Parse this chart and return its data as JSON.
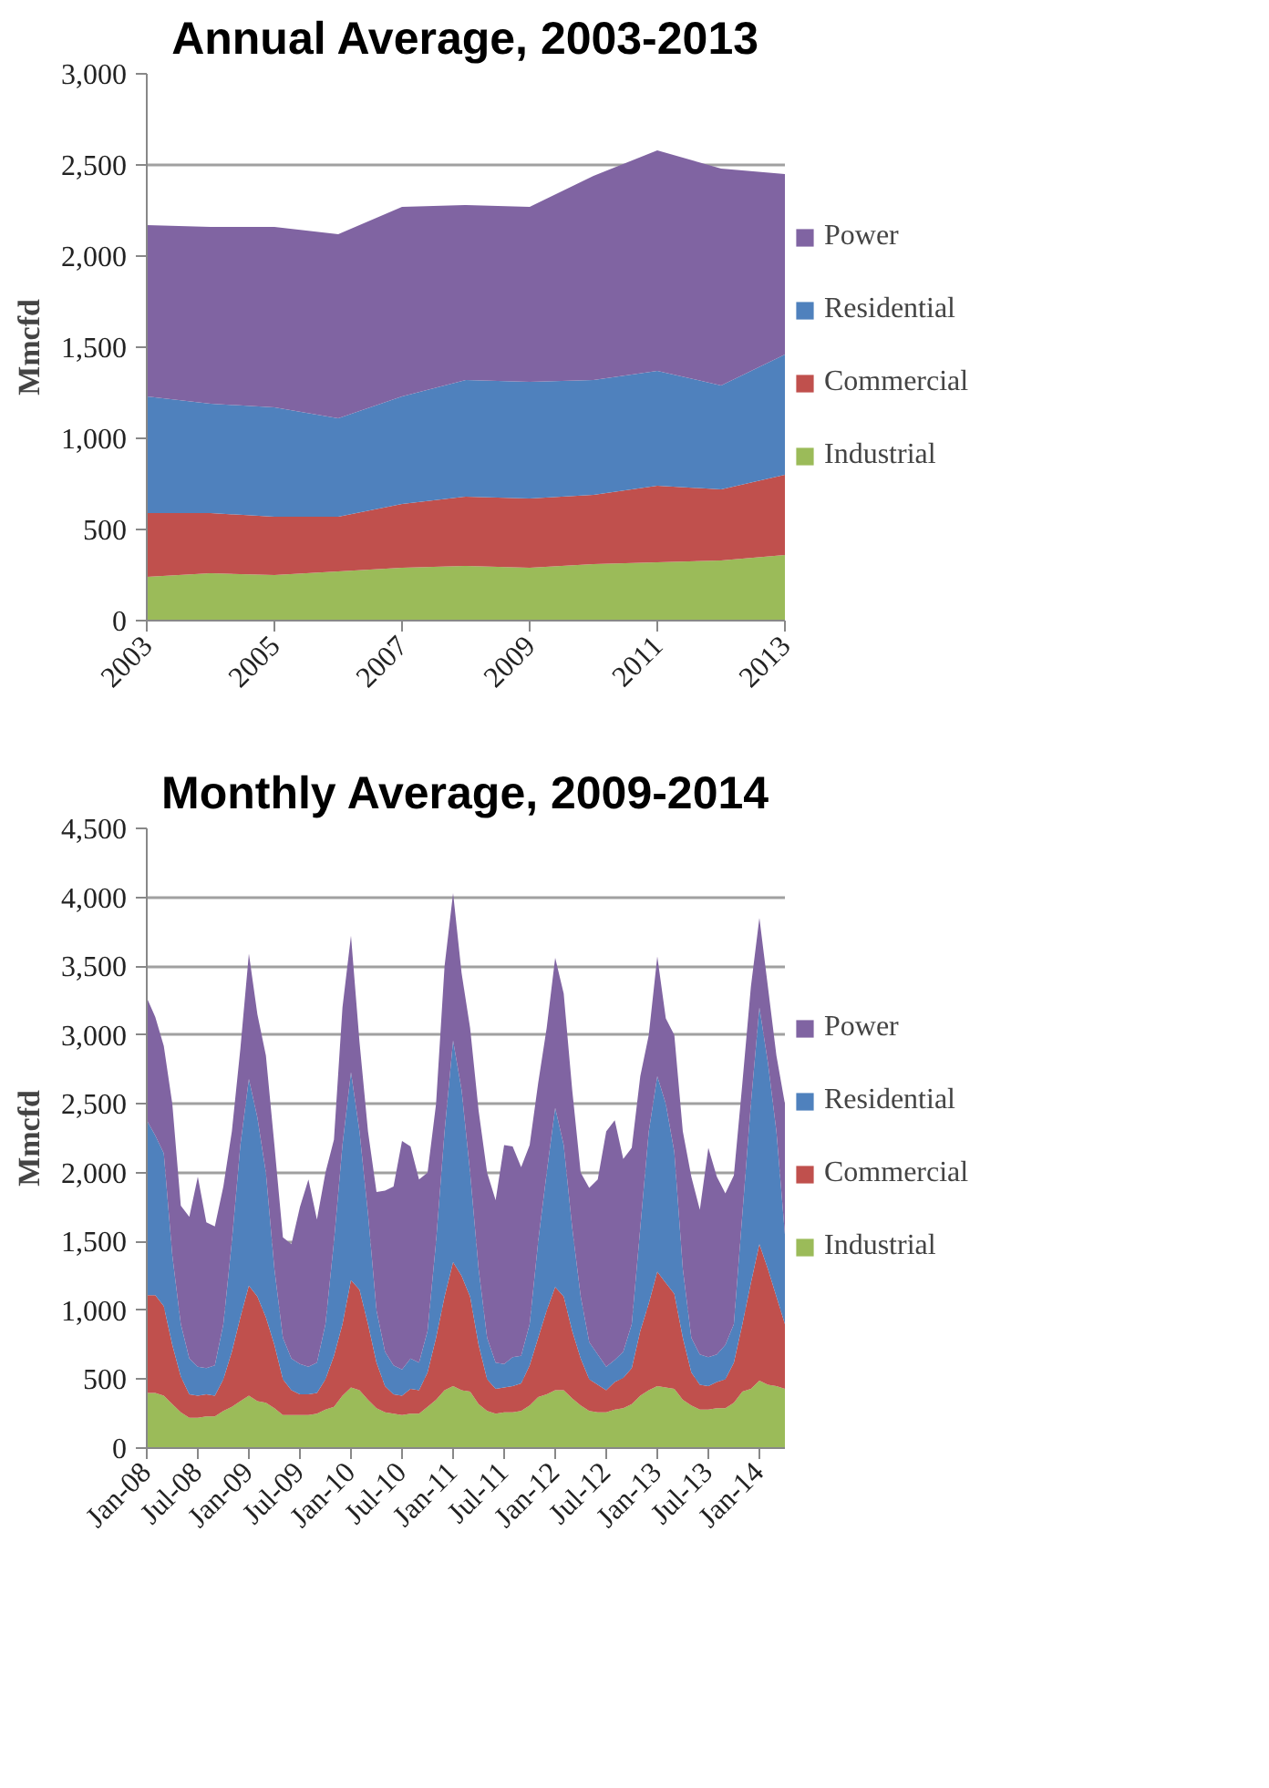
{
  "chart_data": [
    {
      "type": "area",
      "stacked": true,
      "title": "Annual Average, 2003-2013",
      "ylabel": "Mmcfd",
      "x": [
        2003,
        2004,
        2005,
        2006,
        2007,
        2008,
        2009,
        2010,
        2011,
        2012,
        2013
      ],
      "xlim": [
        2003,
        2013
      ],
      "xticks": [
        2003,
        2005,
        2007,
        2009,
        2011,
        2013
      ],
      "ylim": [
        0,
        3000
      ],
      "yticks": [
        0,
        500,
        {
          "value": 1000,
          "label": "1,000"
        },
        {
          "value": 1500,
          "label": "1,500"
        },
        {
          "value": 2000,
          "label": "2,000"
        },
        {
          "value": 2500,
          "label": "2,500"
        },
        {
          "value": 3000,
          "label": "3,000"
        }
      ],
      "grid": "y",
      "legend": "right",
      "series": [
        {
          "name": "Industrial",
          "color": "#9bbb59",
          "values": [
            240,
            260,
            250,
            270,
            290,
            300,
            290,
            310,
            320,
            330,
            360
          ]
        },
        {
          "name": "Commercial",
          "color": "#c0504d",
          "values": [
            350,
            330,
            320,
            300,
            350,
            380,
            380,
            380,
            420,
            390,
            440
          ]
        },
        {
          "name": "Residential",
          "color": "#4f81bd",
          "values": [
            640,
            600,
            600,
            540,
            590,
            640,
            640,
            630,
            630,
            570,
            660
          ]
        },
        {
          "name": "Power",
          "color": "#8064a2",
          "values": [
            940,
            970,
            990,
            1010,
            1040,
            960,
            960,
            1120,
            1210,
            1190,
            990
          ]
        }
      ]
    },
    {
      "type": "area",
      "stacked": true,
      "title": "Monthly Average, 2009-2014",
      "ylabel": "Mmcfd",
      "categories": [
        "Jan-08",
        null,
        null,
        null,
        null,
        null,
        "Jul-08",
        null,
        null,
        null,
        null,
        null,
        "Jan-09",
        null,
        null,
        null,
        null,
        null,
        "Jul-09",
        null,
        null,
        null,
        null,
        null,
        "Jan-10",
        null,
        null,
        null,
        null,
        null,
        "Jul-10",
        null,
        null,
        null,
        null,
        null,
        "Jan-11",
        null,
        null,
        null,
        null,
        null,
        "Jul-11",
        null,
        null,
        null,
        null,
        null,
        "Jan-12",
        null,
        null,
        null,
        null,
        null,
        "Jul-12",
        null,
        null,
        null,
        null,
        null,
        "Jan-13",
        null,
        null,
        null,
        null,
        null,
        "Jul-13",
        null,
        null,
        null,
        null,
        null,
        "Jan-14",
        null,
        null,
        null
      ],
      "ylim": [
        0,
        4500
      ],
      "yticks": [
        0,
        500,
        {
          "value": 1000,
          "label": "1,000"
        },
        {
          "value": 1500,
          "label": "1,500"
        },
        {
          "value": 2000,
          "label": "2,000"
        },
        {
          "value": 2500,
          "label": "2,500"
        },
        {
          "value": 3000,
          "label": "3,000"
        },
        {
          "value": 3500,
          "label": "3,500"
        },
        {
          "value": 4000,
          "label": "4,000"
        },
        {
          "value": 4500,
          "label": "4,500"
        }
      ],
      "grid": "y",
      "legend": "right",
      "series": [
        {
          "name": "Industrial",
          "color": "#9bbb59",
          "values": [
            400,
            400,
            380,
            320,
            260,
            220,
            220,
            230,
            230,
            270,
            300,
            340,
            380,
            340,
            330,
            290,
            240,
            240,
            240,
            240,
            250,
            280,
            300,
            380,
            440,
            420,
            350,
            290,
            260,
            250,
            240,
            250,
            250,
            300,
            350,
            420,
            450,
            420,
            410,
            320,
            270,
            250,
            260,
            260,
            270,
            310,
            370,
            390,
            420,
            420,
            360,
            310,
            270,
            260,
            260,
            280,
            290,
            320,
            380,
            420,
            450,
            440,
            430,
            350,
            310,
            280,
            280,
            290,
            290,
            330,
            410,
            430,
            490,
            460,
            450,
            430
          ]
        },
        {
          "name": "Commercial",
          "color": "#c0504d",
          "values": [
            710,
            710,
            650,
            430,
            260,
            170,
            160,
            160,
            150,
            230,
            400,
            610,
            800,
            760,
            620,
            460,
            260,
            180,
            150,
            150,
            150,
            220,
            370,
            520,
            780,
            730,
            550,
            330,
            190,
            140,
            140,
            180,
            170,
            250,
            450,
            680,
            900,
            830,
            690,
            430,
            230,
            180,
            180,
            190,
            200,
            290,
            430,
            610,
            750,
            680,
            490,
            340,
            230,
            200,
            160,
            200,
            220,
            260,
            470,
            630,
            830,
            760,
            690,
            450,
            240,
            180,
            170,
            190,
            210,
            290,
            490,
            770,
            990,
            840,
            650,
            470
          ]
        },
        {
          "name": "Residential",
          "color": "#4f81bd",
          "values": [
            1270,
            1160,
            1110,
            650,
            380,
            260,
            210,
            190,
            220,
            400,
            800,
            1250,
            1500,
            1300,
            1050,
            550,
            300,
            230,
            220,
            200,
            220,
            400,
            830,
            1300,
            1510,
            1150,
            800,
            380,
            250,
            210,
            190,
            220,
            200,
            300,
            700,
            1200,
            1610,
            1350,
            900,
            550,
            300,
            190,
            170,
            210,
            200,
            300,
            700,
            1000,
            1300,
            1100,
            750,
            450,
            270,
            220,
            170,
            160,
            190,
            320,
            750,
            1250,
            1420,
            1300,
            1030,
            500,
            250,
            220,
            210,
            200,
            250,
            280,
            800,
            1300,
            1720,
            1500,
            1200,
            650
          ]
        },
        {
          "name": "Power",
          "color": "#8064a2",
          "values": [
            890,
            860,
            780,
            1100,
            860,
            1030,
            1380,
            1060,
            1010,
            1000,
            800,
            700,
            910,
            750,
            850,
            900,
            730,
            830,
            1140,
            1360,
            1040,
            1100,
            740,
            1000,
            990,
            650,
            600,
            860,
            1170,
            1300,
            1660,
            1540,
            1330,
            1150,
            1000,
            1200,
            1070,
            850,
            1050,
            1150,
            1200,
            1180,
            1590,
            1530,
            1370,
            1300,
            1150,
            1050,
            1090,
            1100,
            1000,
            900,
            1120,
            1270,
            1710,
            1740,
            1400,
            1280,
            1100,
            700,
            870,
            620,
            850,
            1000,
            1170,
            1050,
            1520,
            1290,
            1100,
            1080,
            950,
            850,
            650,
            550,
            550,
            950
          ]
        }
      ]
    }
  ]
}
